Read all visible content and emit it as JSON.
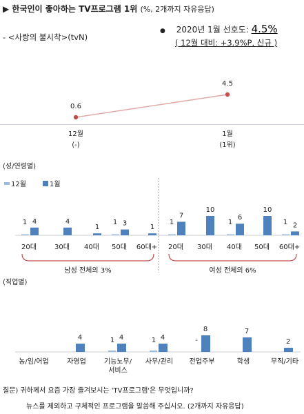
{
  "header": {
    "marker": "▶",
    "title": "한국인이 좋아하는 TV프로그램 1위",
    "subtitle": "(%, 2개까지 자유응답)"
  },
  "program": "- <사랑의 불시착>(tvN)",
  "pref": {
    "bullet": "●",
    "label": "2020년 1월 선호도: ",
    "value": "4.5%",
    "detail": "( 12월 대비: +3.9%P,  신규 )"
  },
  "colors": {
    "line": "#c0504d",
    "bar_jan": "#4f81bd",
    "bar_dec": "#9bbbd9",
    "bracket": "#c0504d"
  },
  "chart_data": [
    {
      "type": "line",
      "x": [
        "12월\n(-)",
        "1월\n(1위)"
      ],
      "x_lines": [
        [
          "12월",
          "(-)"
        ],
        [
          "1월",
          "(1위)"
        ]
      ],
      "values": [
        0.6,
        4.5
      ],
      "value_labels": [
        "0.6",
        "4.5"
      ]
    },
    {
      "type": "bar",
      "title": "(성/연령별)",
      "legend": [
        "12월",
        "1월"
      ],
      "groups": [
        {
          "name": "남성 전체의 3%",
          "categories": [
            "20대",
            "30대",
            "40대",
            "50대",
            "60대+"
          ],
          "series": [
            {
              "name": "12월",
              "values": [
                1,
                null,
                null,
                1,
                null
              ],
              "labels": [
                "1",
                "",
                "",
                "1",
                ""
              ]
            },
            {
              "name": "1월",
              "values": [
                4,
                4,
                1,
                3,
                1
              ],
              "labels": [
                "4",
                "4",
                "1",
                "3",
                "1"
              ]
            }
          ]
        },
        {
          "name": "여성 전체의 6%",
          "categories": [
            "20대",
            "30대",
            "40대",
            "50대",
            "60대+"
          ],
          "series": [
            {
              "name": "12월",
              "values": [
                1,
                null,
                1,
                null,
                1
              ],
              "labels": [
                "1",
                "",
                "1",
                "",
                "1"
              ]
            },
            {
              "name": "1월",
              "values": [
                7,
                10,
                6,
                10,
                2
              ],
              "labels": [
                "7",
                "10",
                "6",
                "10",
                "2"
              ]
            }
          ]
        }
      ]
    },
    {
      "type": "bar",
      "title": "(직업별)",
      "categories": [
        [
          "농/임/어업"
        ],
        [
          "자영업"
        ],
        [
          "기능노무/",
          "서비스"
        ],
        [
          "사무/관리"
        ],
        [
          "전업주부"
        ],
        [
          "학생"
        ],
        [
          "무직/기타"
        ]
      ],
      "series": [
        {
          "name": "12월",
          "values": [
            null,
            null,
            1,
            1,
            null,
            null,
            null
          ],
          "labels": [
            "",
            "",
            "1",
            "1",
            "-",
            "",
            ""
          ]
        },
        {
          "name": "1월",
          "values": [
            null,
            4,
            4,
            4,
            8,
            7,
            2
          ],
          "labels": [
            "",
            "4",
            "4",
            "4",
            "8",
            "7",
            "2"
          ]
        }
      ]
    }
  ],
  "footnote": {
    "line1": "질문) 귀하께서 요즘 가장 즐겨보시는 'TV프로그램'은 무엇입니까?",
    "line2": "뉴스를 제외하고 구체적인 프로그램을 말씀해 주십시오. (2개까지 자유응답)"
  }
}
